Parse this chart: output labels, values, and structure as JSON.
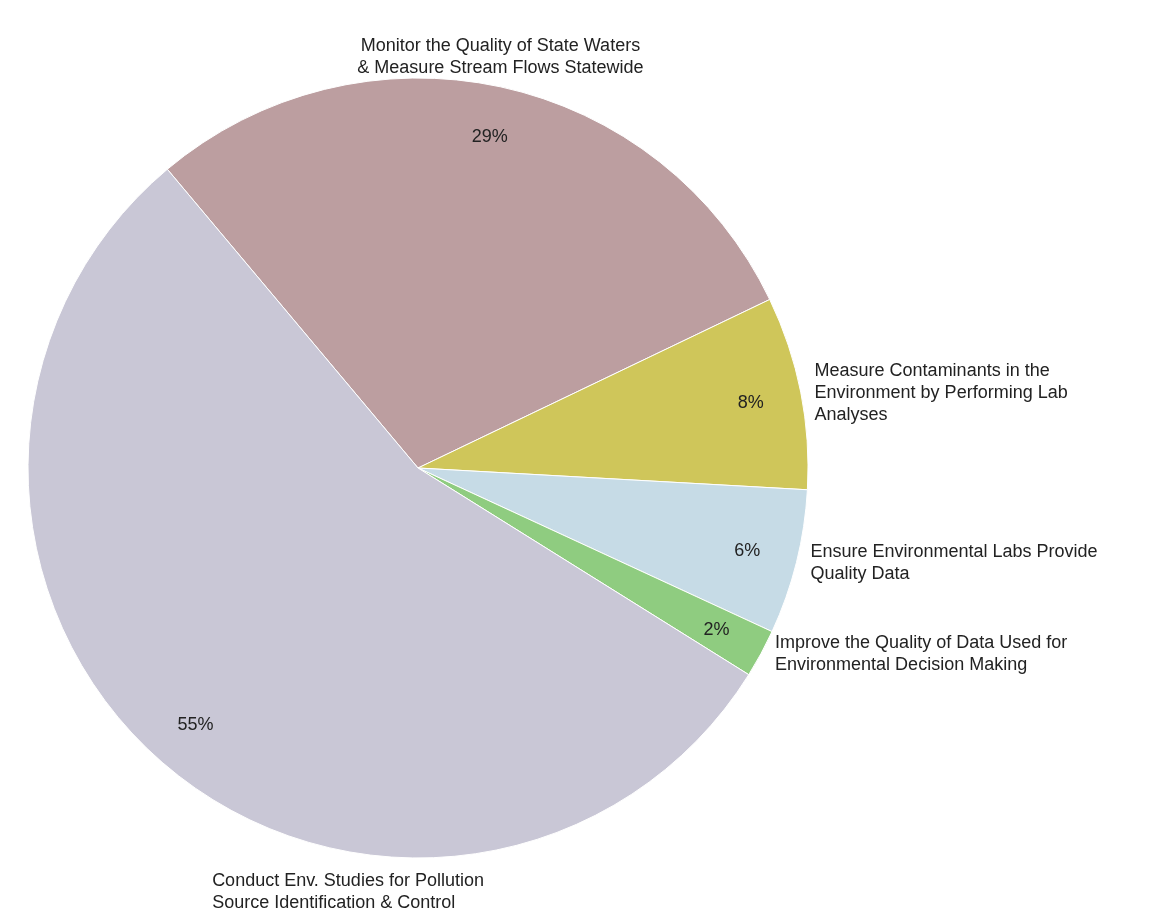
{
  "chart_data": {
    "type": "pie",
    "categories": [
      "Monitor the Quality of State Waters & Measure Stream Flows Statewide",
      "Measure Contaminants in the Environment by Performing Lab Analyses",
      "Ensure Environmental Labs Provide Quality Data",
      "Improve the Quality of Data Used for Environmental Decision Making",
      "Conduct Env. Studies for Pollution Source Identification & Control"
    ],
    "values": [
      29,
      8,
      6,
      2,
      55
    ],
    "colors": [
      "#bc9ea0",
      "#cfc65a",
      "#c6dbe6",
      "#8fcc80",
      "#c9c7d6"
    ],
    "value_labels": [
      "29%",
      "8%",
      "6%",
      "2%",
      "55%"
    ]
  }
}
